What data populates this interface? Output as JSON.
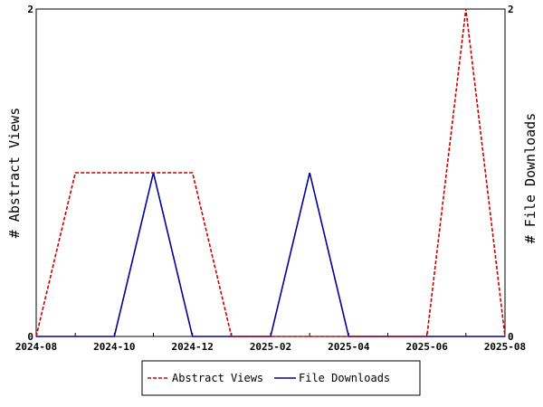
{
  "chart_data": {
    "type": "line",
    "title": "",
    "x": [
      "2024-08",
      "2024-09",
      "2024-10",
      "2024-11",
      "2024-12",
      "2025-01",
      "2025-02",
      "2025-03",
      "2025-04",
      "2025-05",
      "2025-06",
      "2025-07",
      "2025-08"
    ],
    "x_tick_labels": [
      "2024-08",
      "2024-10",
      "2024-12",
      "2025-02",
      "2025-04",
      "2025-06",
      "2025-08"
    ],
    "ylabel_left": "# Abstract Views",
    "ylabel_right": "# File Downloads",
    "ylim_left": [
      0,
      2
    ],
    "ylim_right": [
      0,
      2
    ],
    "y_ticks_left": [
      "0",
      "2"
    ],
    "y_ticks_right": [
      "0",
      "2"
    ],
    "grid": false,
    "legend_placement": "bottom",
    "series": [
      {
        "name": "Abstract Views",
        "color": "#cc0000",
        "style": "dashed",
        "axis": "left",
        "values": [
          0,
          1,
          1,
          1,
          1,
          0,
          0,
          0,
          0,
          0,
          0,
          2,
          0
        ]
      },
      {
        "name": "File Downloads",
        "color": "#000099",
        "style": "solid",
        "axis": "right",
        "values": [
          0,
          0,
          0,
          1,
          0,
          0,
          0,
          1,
          0,
          0,
          0,
          0,
          0
        ]
      }
    ]
  }
}
